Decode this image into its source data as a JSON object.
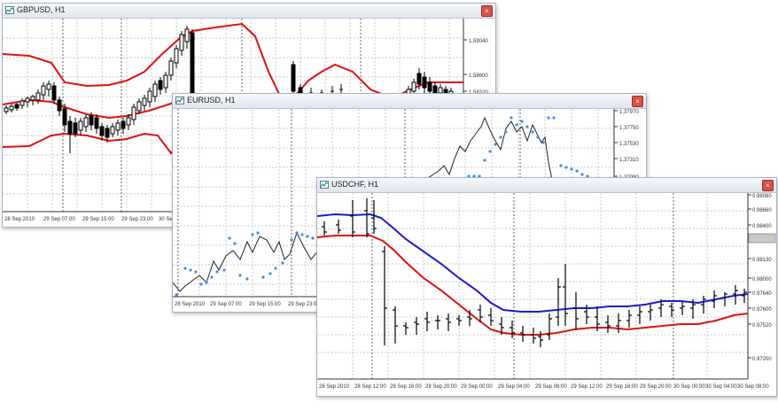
{
  "windows": [
    {
      "title": "GBPUSD, H1",
      "icon": "chart-window-icon",
      "close_icon": "close-icon",
      "price_labels": [
        "1.59040",
        "1.58600",
        "1.58320"
      ],
      "time_labels": [
        "28 Sep 2010",
        "29 Sep 07:00",
        "29 Sep 15:00",
        "29 Sep 23:00",
        "30 Se"
      ]
    },
    {
      "title": "EURUSD, H1",
      "icon": "chart-window-icon",
      "close_icon": "close-icon",
      "price_labels": [
        "1.37970",
        "1.37750",
        "1.37530",
        "1.37310",
        "1.37090"
      ],
      "time_labels": [
        "28 Sep 2010",
        "29 Sep 07:00",
        "29 Sep 15:00",
        "29 Sep 23:00"
      ]
    },
    {
      "title": "USDCHF, H1",
      "icon": "chart-window-icon",
      "close_icon": "close-icon",
      "price_labels": [
        "0.98080",
        "0.98660",
        "0.98400",
        "0.98130",
        "0.98000",
        "0.97640",
        "0.97600",
        "0.97520",
        "0.97200"
      ],
      "time_labels": [
        "28 Sep 2010",
        "28 Sep 12:00",
        "28 Sep 16:00",
        "28 Sep 20:00",
        "29 Sep 00:00",
        "29 Sep 04:00",
        "29 Sep 08:00",
        "29 Sep 12:00",
        "29 Sep 16:00",
        "29 Sep 20:00",
        "30 Sep 00:00",
        "30 Sep 04:00",
        "30 Sep 08:00"
      ]
    }
  ],
  "colors": {
    "bands": "#e01010",
    "ma_fast": "#1a1ad0",
    "ma_slow": "#e01010",
    "sar_dots": "#3a8fe0",
    "grid": "#c8c8c8",
    "bars": "#000000"
  }
}
